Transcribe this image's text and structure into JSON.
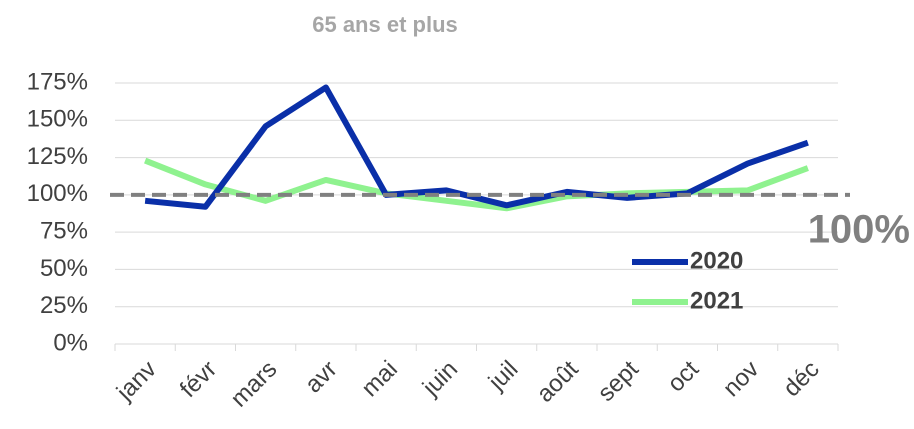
{
  "chart_data": {
    "type": "line",
    "title": "65 ans et plus",
    "categories": [
      "janv",
      "févr",
      "mars",
      "avr",
      "mai",
      "juin",
      "juil",
      "août",
      "sept",
      "oct",
      "nov",
      "déc"
    ],
    "series": [
      {
        "name": "2020",
        "color": "#0a2fa8",
        "values": [
          96,
          92,
          146,
          172,
          100,
          103,
          93,
          102,
          98,
          101,
          121,
          135
        ]
      },
      {
        "name": "2021",
        "color": "#8ff28f",
        "values": [
          123,
          107,
          96,
          110,
          101,
          96,
          91,
          99,
          101,
          102,
          103,
          118
        ]
      }
    ],
    "ylim": [
      0,
      175
    ],
    "yticks": [
      {
        "value": 0,
        "label": "0%"
      },
      {
        "value": 25,
        "label": "25%"
      },
      {
        "value": 50,
        "label": "50%"
      },
      {
        "value": 75,
        "label": "75%"
      },
      {
        "value": 100,
        "label": "100%"
      },
      {
        "value": 125,
        "label": "125%"
      },
      {
        "value": 150,
        "label": "150%"
      },
      {
        "value": 175,
        "label": "175%"
      }
    ],
    "grid": true,
    "reference_line": {
      "value": 100,
      "label": "100%",
      "color": "#808080"
    },
    "legend": "right"
  }
}
